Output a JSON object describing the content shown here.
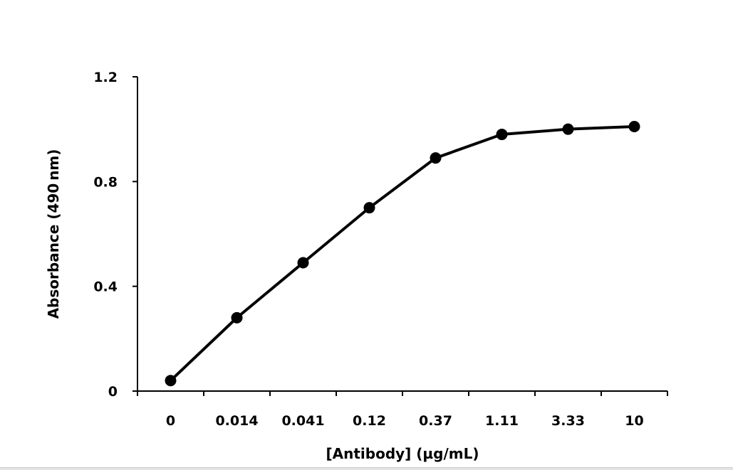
{
  "chart_data": {
    "type": "line",
    "title": "",
    "xlabel": "[Antibody] (µg/mL)",
    "ylabel": "Absorbance (490 nm)",
    "categories": [
      "0",
      "0.014",
      "0.041",
      "0.12",
      "0.37",
      "1.11",
      "3.33",
      "10"
    ],
    "series": [
      {
        "name": "Absorbance",
        "values": [
          0.04,
          0.28,
          0.49,
          0.7,
          0.89,
          0.98,
          1.0,
          1.01
        ]
      }
    ],
    "ylim": [
      0,
      1.2
    ],
    "yticks": [
      0,
      0.4,
      0.8,
      1.2
    ],
    "ytick_labels": [
      "0",
      "0.4",
      "0.8",
      "1.2"
    ],
    "grid": false,
    "legend": "none",
    "line_color": "#000000",
    "marker_color": "#000000"
  }
}
